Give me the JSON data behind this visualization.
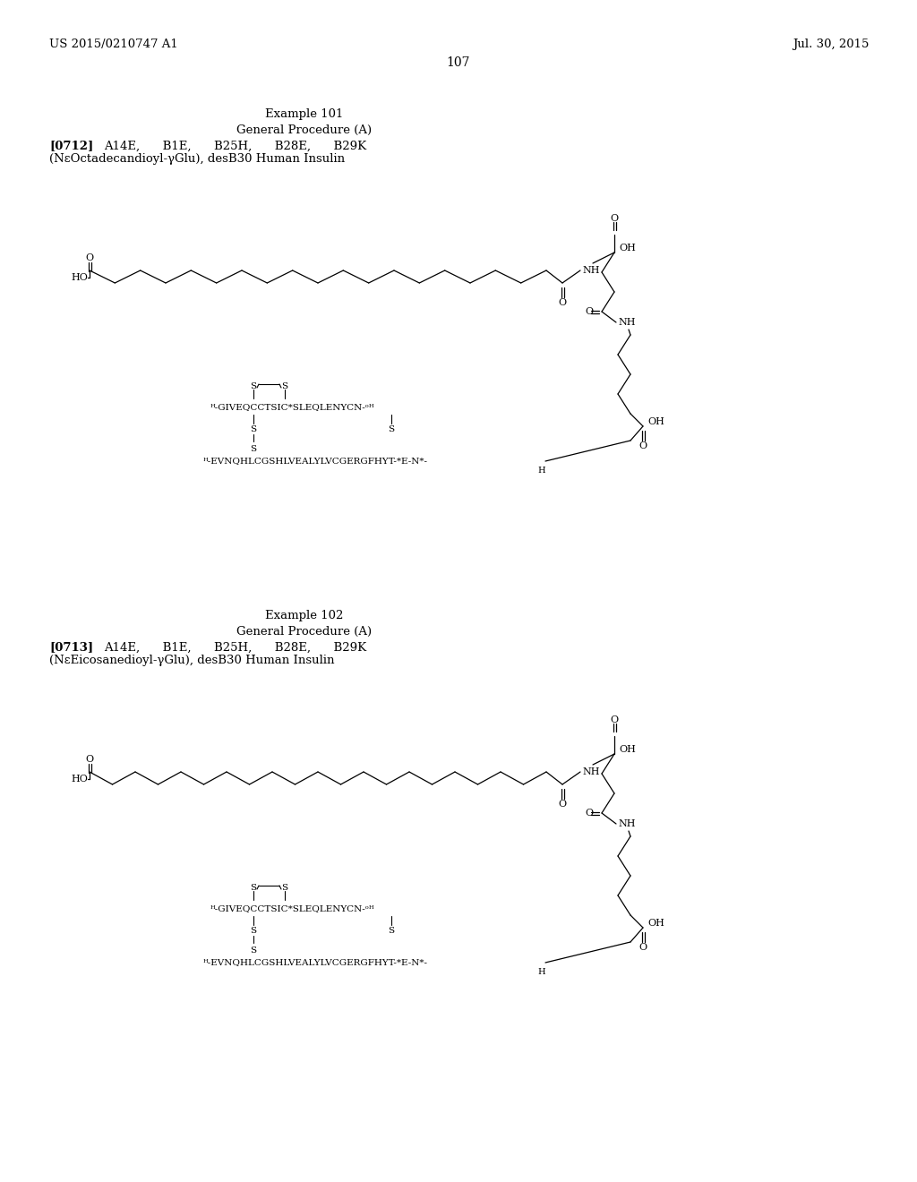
{
  "background_color": "#ffffff",
  "page_number": "107",
  "top_left_text": "US 2015/0210747 A1",
  "top_right_text": "Jul. 30, 2015",
  "example1": {
    "title": "Example 101",
    "procedure": "General Procedure (A)",
    "ref": "[0712]",
    "tags": "A14E,      B1E,      B25H,      B28E,      B29K",
    "compound": "(NεOctadecandioyl-γGlu), desB30 Human Insulin"
  },
  "example2": {
    "title": "Example 102",
    "procedure": "General Procedure (A)",
    "ref": "[0713]",
    "tags": "A14E,      B1E,      B25H,      B28E,      B29K",
    "compound": "(NεEicosanedioyl-γGlu), desB30 Human Insulin"
  }
}
